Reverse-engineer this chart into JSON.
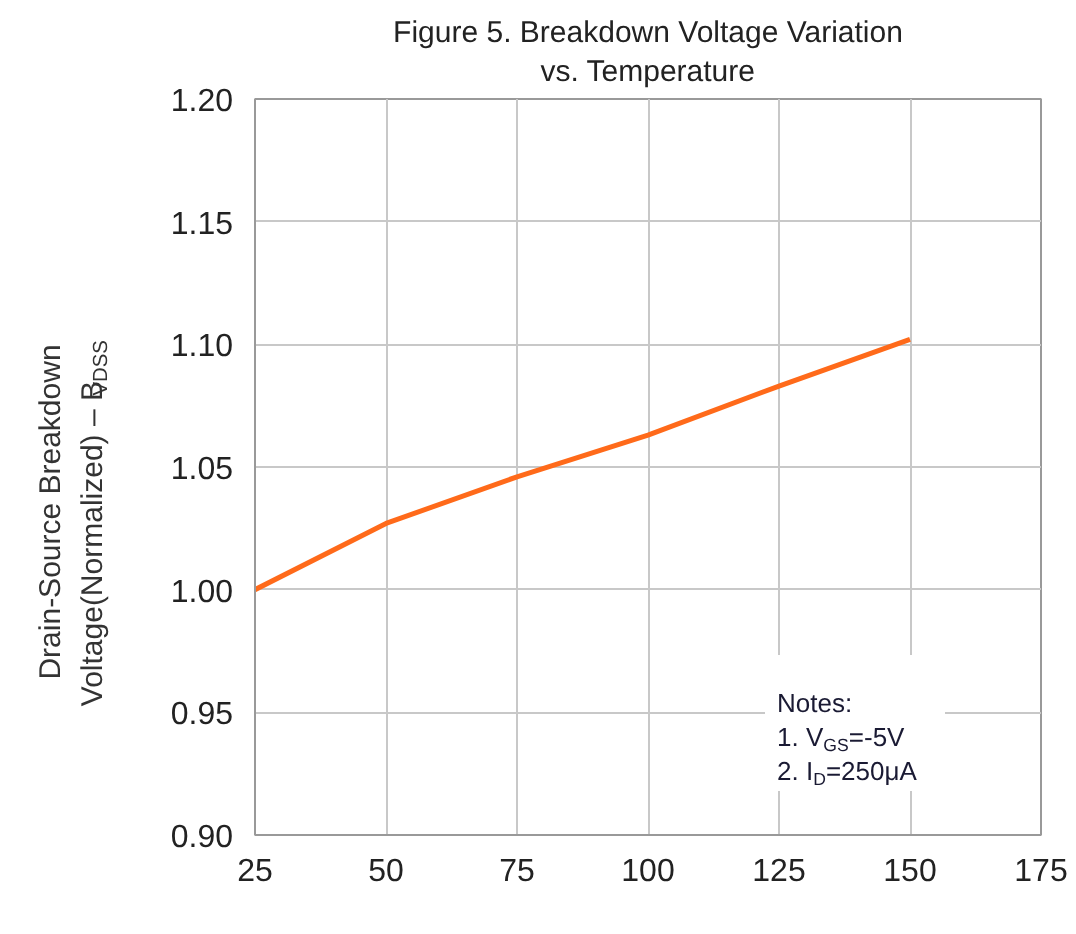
{
  "chart_data": {
    "type": "line",
    "title": "Figure 5. Breakdown Voltage Variation\nvs. Temperature",
    "ylabel": "Drain-Source Breakdown\nVoltage(Normalized)  –  B$_{VDSS}$",
    "x": [
      25,
      50,
      75,
      100,
      125,
      150
    ],
    "series": [
      {
        "color": "#ff6a1a",
        "values": [
          1.0,
          1.027,
          1.046,
          1.063,
          1.083,
          1.102
        ]
      }
    ],
    "xlim": [
      25,
      175
    ],
    "xticks": [
      25,
      50,
      75,
      100,
      125,
      150,
      175
    ],
    "ylim": [
      0.9,
      1.2
    ],
    "yticks": [
      {
        "value": 0.9,
        "label": "0.90"
      },
      {
        "value": 0.95,
        "label": "0.95"
      },
      {
        "value": 1.0,
        "label": "1.00"
      },
      {
        "value": 1.05,
        "label": "1.05"
      },
      {
        "value": 1.1,
        "label": "1.10"
      },
      {
        "value": 1.15,
        "label": "1.15"
      },
      {
        "value": 1.2,
        "label": "1.20"
      }
    ],
    "grid": true,
    "marker": "none",
    "line_style": "solid",
    "annotations": [
      "Notes:",
      "1. V$_{GS}$=-5V",
      "2. I$_{D}$=250μA"
    ]
  }
}
